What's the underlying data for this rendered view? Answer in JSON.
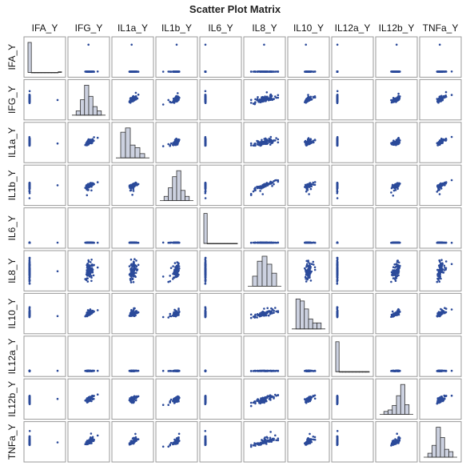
{
  "chart_data": {
    "type": "scatter-matrix",
    "title": "Scatter Plot Matrix",
    "variables": [
      "IFA_Y",
      "IFG_Y",
      "IL1a_Y",
      "IL1b_Y",
      "IL6_Y",
      "IL8_Y",
      "IL10_Y",
      "IL12a_Y",
      "IL12b_Y",
      "TNFa_Y"
    ],
    "n_observations": 80,
    "diagonal": "histogram",
    "off_diagonal": "scatter",
    "grid": false,
    "colors": {
      "marker": "#2b4a9a",
      "histogram_fill": "#ccd1e0",
      "histogram_stroke": "#333333",
      "panel_border": "#9a9a9a"
    },
    "distributions": {
      "IFA_Y": {
        "shape": "degenerate-with-outlier",
        "histogram_bins": [
          0.98,
          0.0,
          0.0,
          0.0,
          0.0,
          0.0,
          0.0,
          0.0,
          0.0,
          0.02
        ]
      },
      "IFG_Y": {
        "shape": "right-skewed",
        "histogram_bins": [
          0.05,
          0.18,
          0.35,
          0.22,
          0.1,
          0.05
        ]
      },
      "IL1a_Y": {
        "shape": "right-skewed",
        "histogram_bins": [
          0.3,
          0.35,
          0.15,
          0.12,
          0.05
        ]
      },
      "IL1b_Y": {
        "shape": "left-skewed",
        "histogram_bins": [
          0.05,
          0.15,
          0.28,
          0.35,
          0.12,
          0.05
        ]
      },
      "IL6_Y": {
        "shape": "degenerate",
        "histogram_bins": [
          1.0,
          0.0,
          0.0,
          0.0,
          0.0,
          0.0,
          0.0,
          0.0,
          0.0,
          0.0
        ]
      },
      "IL8_Y": {
        "shape": "symmetric",
        "histogram_bins": [
          0.1,
          0.25,
          0.3,
          0.22,
          0.13
        ]
      },
      "IL10_Y": {
        "shape": "right-skewed",
        "histogram_bins": [
          0.3,
          0.28,
          0.2,
          0.1,
          0.06,
          0.06
        ]
      },
      "IL12a_Y": {
        "shape": "degenerate",
        "histogram_bins": [
          1.0,
          0.0,
          0.0,
          0.0,
          0.0,
          0.0,
          0.0,
          0.0,
          0.0,
          0.0
        ]
      },
      "IL12b_Y": {
        "shape": "left-skewed",
        "histogram_bins": [
          0.04,
          0.06,
          0.12,
          0.25,
          0.4,
          0.13
        ]
      },
      "TNFa_Y": {
        "shape": "right-skewed",
        "histogram_bins": [
          0.05,
          0.15,
          0.38,
          0.25,
          0.1,
          0.07
        ]
      }
    },
    "correlations": {
      "IFG_Y-IL1a_Y": 0.5,
      "IFG_Y-IL1b_Y": 0.45,
      "IFG_Y-IL8_Y": 0.3,
      "IFG_Y-IL10_Y": 0.7,
      "IFG_Y-IL12b_Y": 0.65,
      "IFG_Y-TNFa_Y": 0.5,
      "IL1a_Y-IL1b_Y": 0.45,
      "IL1a_Y-IL8_Y": 0.2,
      "IL1a_Y-IL10_Y": 0.35,
      "IL1a_Y-IL12b_Y": 0.4,
      "IL1a_Y-TNFa_Y": 0.6,
      "IL1b_Y-IL8_Y": 0.6,
      "IL1b_Y-IL10_Y": 0.5,
      "IL1b_Y-IL12b_Y": 0.45,
      "IL1b_Y-TNFa_Y": 0.55,
      "IL8_Y-IL10_Y": 0.35,
      "IL8_Y-IL12b_Y": 0.4,
      "IL8_Y-TNFa_Y": 0.3,
      "IL10_Y-IL12b_Y": 0.7,
      "IL10_Y-TNFa_Y": 0.5,
      "IL12b_Y-TNFa_Y": 0.45
    }
  }
}
